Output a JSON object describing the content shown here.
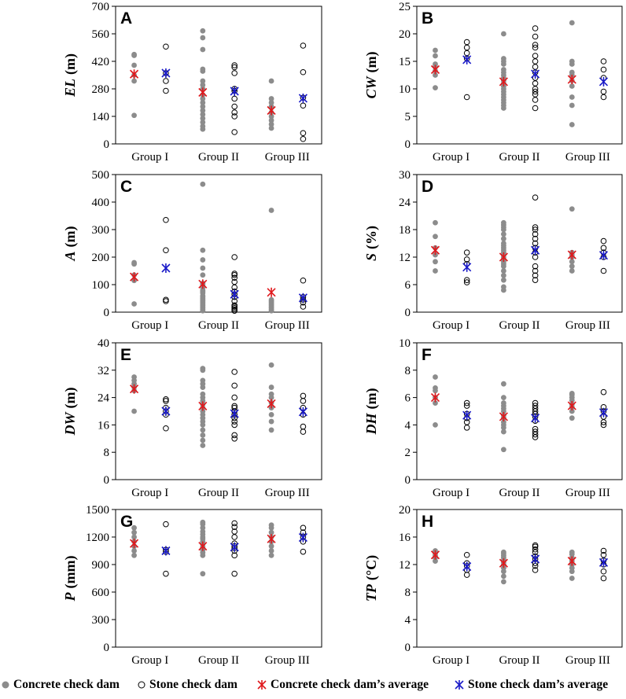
{
  "colors": {
    "concrete": "#8c8c8c",
    "stone": "#000000",
    "concrete_avg": "#e0181c",
    "stone_avg": "#1a1ac8",
    "axis": "#000000",
    "text": "#000000"
  },
  "legend": {
    "concrete": "Concrete check dam",
    "stone": "Stone check dam",
    "concrete_avg": "Concrete check dam’s average",
    "stone_avg": "Stone check dam’s average"
  },
  "chart_data": [
    {
      "type": "scatter",
      "panel": "A",
      "ylabel_main": "EL",
      "ylabel_unit": "(m)",
      "ylim": [
        0,
        700
      ],
      "yticks": [
        0,
        140,
        280,
        420,
        560,
        700
      ],
      "categories": [
        "Group I",
        "Group II",
        "Group III"
      ],
      "concrete": [
        [
          145,
          320,
          350,
          400,
          450,
          455
        ],
        [
          75,
          90,
          110,
          130,
          150,
          170,
          190,
          210,
          230,
          250,
          280,
          300,
          320,
          370,
          380,
          480,
          540,
          575
        ],
        [
          80,
          100,
          120,
          140,
          160,
          190,
          210,
          230,
          320
        ]
      ],
      "stone": [
        [
          270,
          320,
          360,
          495
        ],
        [
          60,
          140,
          160,
          190,
          230,
          270,
          280,
          360,
          390,
          400
        ],
        [
          25,
          55,
          195,
          235,
          365,
          500
        ]
      ],
      "concrete_avg": [
        355,
        262,
        170
      ],
      "stone_avg": [
        360,
        268,
        232
      ]
    },
    {
      "type": "scatter",
      "panel": "B",
      "ylabel_main": "CW",
      "ylabel_unit": "(m)",
      "ylim": [
        0,
        25
      ],
      "yticks": [
        0,
        5,
        10,
        15,
        20,
        25
      ],
      "categories": [
        "Group I",
        "Group II",
        "Group III"
      ],
      "concrete": [
        [
          10.2,
          12.5,
          13.3,
          14.0,
          14.5,
          16.0,
          17.0
        ],
        [
          6.5,
          7.0,
          7.5,
          8.0,
          8.5,
          9.0,
          9.5,
          10.0,
          10.5,
          11.0,
          11.5,
          12.0,
          12.5,
          13.0,
          13.5,
          14.5,
          15.0,
          15.5,
          20.0
        ],
        [
          3.5,
          7.0,
          8.5,
          10.5,
          11.5,
          12.5,
          13.0,
          14.5,
          15.0,
          22.0
        ]
      ],
      "stone": [
        [
          8.5,
          15.5,
          16.5,
          17.5,
          18.5
        ],
        [
          6.5,
          8.0,
          9.0,
          9.5,
          10.0,
          11.0,
          12.0,
          13.0,
          14.0,
          15.0,
          16.0,
          17.5,
          18.0,
          19.5,
          21.0
        ],
        [
          8.5,
          9.5,
          12.0,
          13.5,
          15.0
        ]
      ],
      "concrete_avg": [
        13.5,
        11.3,
        11.7
      ],
      "stone_avg": [
        15.3,
        12.7,
        11.3
      ]
    },
    {
      "type": "scatter",
      "panel": "C",
      "ylabel_main": "A",
      "ylabel_unit": "(m)",
      "ylim": [
        0,
        500
      ],
      "yticks": [
        0,
        100,
        200,
        300,
        400,
        500
      ],
      "categories": [
        "Group I",
        "Group II",
        "Group III"
      ],
      "concrete": [
        [
          30,
          115,
          135,
          175,
          180
        ],
        [
          5,
          10,
          15,
          20,
          25,
          30,
          35,
          40,
          45,
          50,
          55,
          60,
          70,
          75,
          80,
          90,
          100,
          105,
          135,
          160,
          190,
          225,
          465
        ],
        [
          5,
          10,
          15,
          20,
          25,
          30,
          35,
          40,
          45,
          370
        ]
      ],
      "stone": [
        [
          40,
          45,
          225,
          335
        ],
        [
          5,
          10,
          15,
          20,
          25,
          40,
          55,
          65,
          75,
          90,
          110,
          125,
          135,
          140,
          200
        ],
        [
          20,
          35,
          45,
          55,
          115
        ]
      ],
      "concrete_avg": [
        128,
        102,
        72
      ],
      "stone_avg": [
        160,
        65,
        52
      ]
    },
    {
      "type": "scatter",
      "panel": "D",
      "ylabel_main": "S",
      "ylabel_unit": "(%)",
      "ylim": [
        0,
        30
      ],
      "yticks": [
        0,
        6,
        12,
        18,
        24,
        30
      ],
      "categories": [
        "Group I",
        "Group II",
        "Group III"
      ],
      "concrete": [
        [
          9.0,
          11.0,
          12.5,
          14.0,
          16.5,
          19.5
        ],
        [
          4.8,
          5.5,
          7.0,
          8.0,
          9.0,
          10.0,
          10.5,
          11.0,
          11.5,
          12.0,
          12.5,
          13.0,
          13.5,
          14.0,
          14.5,
          15.0,
          16.0,
          17.0,
          18.0,
          18.5,
          19.0,
          19.5
        ],
        [
          9.0,
          10.0,
          11.0,
          12.0,
          12.5,
          13.0,
          22.5
        ]
      ],
      "stone": [
        [
          6.5,
          7.0,
          10.5,
          11.5,
          13.0
        ],
        [
          7.0,
          8.0,
          9.0,
          10.0,
          12.0,
          13.0,
          14.0,
          15.0,
          16.0,
          17.0,
          18.0,
          18.5,
          25.0
        ],
        [
          9.0,
          12.0,
          13.0,
          14.0,
          15.5
        ]
      ],
      "concrete_avg": [
        13.5,
        12.0,
        12.5
      ],
      "stone_avg": [
        9.8,
        13.5,
        12.4
      ]
    },
    {
      "type": "scatter",
      "panel": "E",
      "ylabel_main": "DW",
      "ylabel_unit": "(m)",
      "ylim": [
        0,
        40
      ],
      "yticks": [
        0,
        8,
        16,
        24,
        32,
        40
      ],
      "categories": [
        "Group I",
        "Group II",
        "Group III"
      ],
      "concrete": [
        [
          20.0,
          26.0,
          27.0,
          28.0,
          29.0,
          30.0
        ],
        [
          10.0,
          11.5,
          13.0,
          14.5,
          16.0,
          17.0,
          18.0,
          19.0,
          20.0,
          21.0,
          22.0,
          23.0,
          24.0,
          25.0,
          27.0,
          28.0,
          29.0,
          32.0,
          32.5
        ],
        [
          14.5,
          17.0,
          19.0,
          21.0,
          22.5,
          24.0,
          25.0,
          27.0,
          33.5
        ]
      ],
      "stone": [
        [
          15.0,
          19.0,
          20.0,
          21.0,
          23.0,
          23.5
        ],
        [
          12.0,
          13.0,
          16.0,
          17.0,
          18.0,
          19.0,
          20.0,
          21.0,
          21.5,
          24.0,
          27.5,
          31.5
        ],
        [
          14.0,
          15.5,
          19.0,
          21.0,
          23.0,
          24.5
        ]
      ],
      "concrete_avg": [
        26.5,
        21.5,
        22.2
      ],
      "stone_avg": [
        20.0,
        19.3,
        19.8
      ]
    },
    {
      "type": "scatter",
      "panel": "F",
      "ylabel_main": "DH",
      "ylabel_unit": "(m)",
      "ylim": [
        0,
        10
      ],
      "yticks": [
        0,
        2,
        4,
        6,
        8,
        10
      ],
      "categories": [
        "Group I",
        "Group II",
        "Group III"
      ],
      "concrete": [
        [
          4.0,
          5.6,
          6.0,
          6.5,
          6.7,
          7.5
        ],
        [
          2.2,
          3.5,
          3.8,
          4.0,
          4.2,
          4.5,
          4.7,
          5.0,
          5.2,
          5.4,
          5.6,
          6.0,
          7.0
        ],
        [
          4.5,
          5.0,
          5.3,
          5.5,
          5.8,
          6.0,
          6.2,
          6.3
        ]
      ],
      "stone": [
        [
          3.8,
          4.2,
          4.5,
          4.8,
          5.4,
          5.6
        ],
        [
          3.1,
          3.3,
          3.5,
          3.7,
          4.3,
          4.6,
          4.8,
          5.0,
          5.2,
          5.4,
          5.6
        ],
        [
          4.0,
          4.2,
          4.6,
          5.0,
          5.3,
          6.4
        ]
      ],
      "concrete_avg": [
        6.0,
        4.6,
        5.4
      ],
      "stone_avg": [
        4.7,
        4.5,
        4.9
      ]
    },
    {
      "type": "scatter",
      "panel": "G",
      "ylabel_main": "P",
      "ylabel_unit": "(mm)",
      "ylim": [
        0,
        1500
      ],
      "yticks": [
        0,
        300,
        600,
        900,
        1200,
        1500
      ],
      "categories": [
        "Group I",
        "Group II",
        "Group III"
      ],
      "concrete": [
        [
          1000,
          1050,
          1100,
          1150,
          1200,
          1250,
          1300
        ],
        [
          800,
          1000,
          1030,
          1060,
          1090,
          1120,
          1150,
          1180,
          1200,
          1230,
          1260,
          1300,
          1340,
          1360
        ],
        [
          1000,
          1050,
          1100,
          1150,
          1200,
          1250,
          1300,
          1330
        ]
      ],
      "stone": [
        [
          800,
          1040,
          1060,
          1340
        ],
        [
          800,
          1000,
          1050,
          1080,
          1100,
          1130,
          1200,
          1260,
          1310,
          1350
        ],
        [
          1040,
          1150,
          1200,
          1250,
          1300
        ]
      ],
      "concrete_avg": [
        1130,
        1100,
        1180
      ],
      "stone_avg": [
        1050,
        1090,
        1195
      ]
    },
    {
      "type": "scatter",
      "panel": "H",
      "ylabel_main": "TP",
      "ylabel_unit": "(°C)",
      "ylim": [
        0,
        20
      ],
      "yticks": [
        0,
        4,
        8,
        12,
        16,
        20
      ],
      "categories": [
        "Group I",
        "Group II",
        "Group III"
      ],
      "concrete": [
        [
          12.5,
          13.0,
          13.3,
          13.6,
          13.8,
          14.0
        ],
        [
          9.5,
          10.3,
          11.0,
          11.5,
          12.0,
          12.3,
          12.6,
          13.0,
          13.3,
          13.6,
          13.8
        ],
        [
          10.0,
          11.0,
          11.5,
          12.0,
          12.5,
          13.0,
          13.5,
          13.8
        ]
      ],
      "stone": [
        [
          10.5,
          11.2,
          11.8,
          12.2,
          13.4
        ],
        [
          11.2,
          11.8,
          12.2,
          12.8,
          13.2,
          13.8,
          14.2,
          14.6,
          14.8
        ],
        [
          10.0,
          11.0,
          12.0,
          12.6,
          13.4,
          14.0
        ]
      ],
      "concrete_avg": [
        13.4,
        12.2,
        12.5
      ],
      "stone_avg": [
        11.7,
        12.8,
        12.3
      ]
    }
  ]
}
